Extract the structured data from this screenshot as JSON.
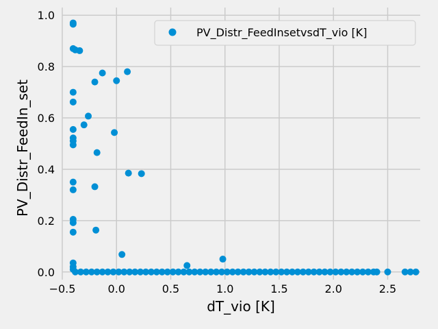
{
  "chart_data": {
    "type": "scatter",
    "title": "",
    "xlabel": "dT_vio [K]",
    "ylabel": "PV_Distr_FeedIn_set",
    "xlim": [
      -0.5,
      2.8
    ],
    "ylim": [
      -0.03,
      1.03
    ],
    "xticks": [
      -0.5,
      0.0,
      0.5,
      1.0,
      1.5,
      2.0,
      2.5
    ],
    "xtick_labels": [
      "−0.5",
      "0.0",
      "0.5",
      "1.0",
      "1.5",
      "2.0",
      "2.5"
    ],
    "yticks": [
      0.0,
      0.2,
      0.4,
      0.6,
      0.8,
      1.0
    ],
    "ytick_labels": [
      "0.0",
      "0.2",
      "0.4",
      "0.6",
      "0.8",
      "1.0"
    ],
    "grid": true,
    "legend": {
      "position": "top-right",
      "entries": [
        "PV_Distr_FeedInsetvsdT_vio [K]"
      ]
    },
    "series": [
      {
        "name": "PV_Distr_FeedInsetvsdT_vio [K]",
        "color": "#008fd5",
        "points": [
          [
            -0.4,
            0.97
          ],
          [
            -0.4,
            0.965
          ],
          [
            -0.4,
            0.87
          ],
          [
            -0.38,
            0.865
          ],
          [
            -0.34,
            0.862
          ],
          [
            -0.4,
            0.7
          ],
          [
            -0.4,
            0.662
          ],
          [
            -0.4,
            0.555
          ],
          [
            -0.4,
            0.522
          ],
          [
            -0.4,
            0.51
          ],
          [
            -0.4,
            0.495
          ],
          [
            -0.4,
            0.35
          ],
          [
            -0.4,
            0.32
          ],
          [
            -0.4,
            0.205
          ],
          [
            -0.4,
            0.192
          ],
          [
            -0.4,
            0.155
          ],
          [
            -0.4,
            0.035
          ],
          [
            -0.4,
            0.02
          ],
          [
            -0.4,
            0.01
          ],
          [
            -0.13,
            0.775
          ],
          [
            -0.2,
            0.74
          ],
          [
            0.0,
            0.745
          ],
          [
            0.1,
            0.78
          ],
          [
            -0.26,
            0.607
          ],
          [
            -0.3,
            0.573
          ],
          [
            -0.02,
            0.543
          ],
          [
            -0.18,
            0.465
          ],
          [
            0.11,
            0.385
          ],
          [
            0.23,
            0.383
          ],
          [
            -0.2,
            0.332
          ],
          [
            -0.19,
            0.163
          ],
          [
            0.05,
            0.068
          ],
          [
            0.98,
            0.05
          ],
          [
            0.65,
            0.025
          ],
          [
            -0.38,
            0.0
          ],
          [
            -0.33,
            0.0
          ],
          [
            -0.28,
            0.0
          ],
          [
            -0.23,
            0.0
          ],
          [
            -0.18,
            0.0
          ],
          [
            -0.13,
            0.0
          ],
          [
            -0.08,
            0.0
          ],
          [
            -0.03,
            0.0
          ],
          [
            0.02,
            0.0
          ],
          [
            0.07,
            0.0
          ],
          [
            0.12,
            0.0
          ],
          [
            0.17,
            0.0
          ],
          [
            0.22,
            0.0
          ],
          [
            0.27,
            0.0
          ],
          [
            0.32,
            0.0
          ],
          [
            0.37,
            0.0
          ],
          [
            0.42,
            0.0
          ],
          [
            0.47,
            0.0
          ],
          [
            0.52,
            0.0
          ],
          [
            0.57,
            0.0
          ],
          [
            0.62,
            0.0
          ],
          [
            0.67,
            0.0
          ],
          [
            0.72,
            0.0
          ],
          [
            0.77,
            0.0
          ],
          [
            0.82,
            0.0
          ],
          [
            0.87,
            0.0
          ],
          [
            0.92,
            0.0
          ],
          [
            0.97,
            0.0
          ],
          [
            1.02,
            0.0
          ],
          [
            1.07,
            0.0
          ],
          [
            1.12,
            0.0
          ],
          [
            1.17,
            0.0
          ],
          [
            1.22,
            0.0
          ],
          [
            1.27,
            0.0
          ],
          [
            1.32,
            0.0
          ],
          [
            1.37,
            0.0
          ],
          [
            1.42,
            0.0
          ],
          [
            1.47,
            0.0
          ],
          [
            1.52,
            0.0
          ],
          [
            1.57,
            0.0
          ],
          [
            1.62,
            0.0
          ],
          [
            1.67,
            0.0
          ],
          [
            1.72,
            0.0
          ],
          [
            1.77,
            0.0
          ],
          [
            1.82,
            0.0
          ],
          [
            1.87,
            0.0
          ],
          [
            1.92,
            0.0
          ],
          [
            1.97,
            0.0
          ],
          [
            2.02,
            0.0
          ],
          [
            2.07,
            0.0
          ],
          [
            2.12,
            0.0
          ],
          [
            2.17,
            0.0
          ],
          [
            2.22,
            0.0
          ],
          [
            2.27,
            0.0
          ],
          [
            2.32,
            0.0
          ],
          [
            2.37,
            0.0
          ],
          [
            2.4,
            0.0
          ],
          [
            2.5,
            0.0
          ],
          [
            2.66,
            0.0
          ],
          [
            2.71,
            0.0
          ],
          [
            2.76,
            0.0
          ]
        ]
      }
    ]
  }
}
